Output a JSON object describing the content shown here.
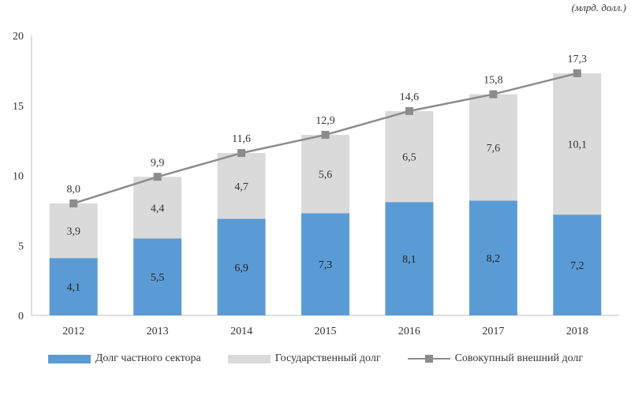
{
  "unit_label": "(млрд. долл.)",
  "colors": {
    "private": "#5b9bd5",
    "government": "#dadada",
    "total": "#8c8c8c"
  },
  "chart_data": {
    "type": "bar",
    "stacked": true,
    "categories": [
      "2012",
      "2013",
      "2014",
      "2015",
      "2016",
      "2017",
      "2018"
    ],
    "series": [
      {
        "name": "Долг частного сектора",
        "kind": "bar",
        "values": [
          4.1,
          5.5,
          6.9,
          7.3,
          8.1,
          8.2,
          7.2
        ],
        "labels": [
          "4,1",
          "5,5",
          "6,9",
          "7,3",
          "8,1",
          "8,2",
          "7,2"
        ]
      },
      {
        "name": "Государственный долг",
        "kind": "bar",
        "values": [
          3.9,
          4.4,
          4.7,
          5.6,
          6.5,
          7.6,
          10.1
        ],
        "labels": [
          "3,9",
          "4,4",
          "4,7",
          "5,6",
          "6,5",
          "7,6",
          "10,1"
        ]
      },
      {
        "name": "Совокупный внешний долг",
        "kind": "line",
        "values": [
          8.0,
          9.9,
          11.6,
          12.9,
          14.6,
          15.8,
          17.3
        ],
        "labels": [
          "8,0",
          "9,9",
          "11,6",
          "12,9",
          "14,6",
          "15,8",
          "17,3"
        ]
      }
    ],
    "yticks": [
      "0",
      "5",
      "10",
      "15",
      "20"
    ],
    "ylim": [
      0,
      20
    ],
    "legend": "bottom",
    "grid": false
  }
}
